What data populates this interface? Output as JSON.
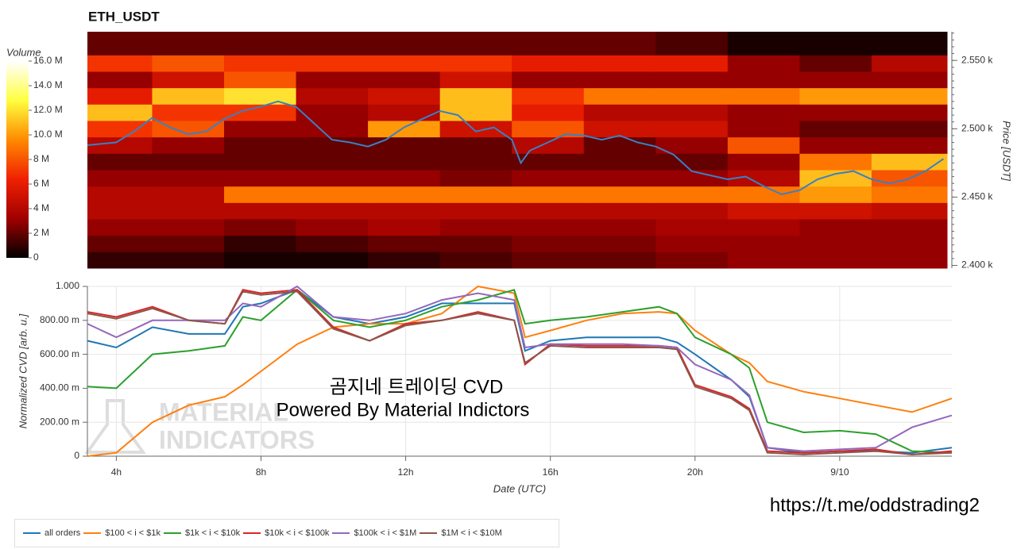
{
  "chart_data": [
    {
      "type": "heatmap",
      "title": "ETH_USDT",
      "ylabel": "Price [USDT]",
      "colorbar_label": "Volume",
      "xlim": [
        3.2,
        27.1
      ],
      "ylim": [
        2398,
        2571
      ],
      "yticks": [
        {
          "value": 2400,
          "label": "2.400 k"
        },
        {
          "value": 2450,
          "label": "2.450 k"
        },
        {
          "value": 2500,
          "label": "2.500 k"
        },
        {
          "value": 2550,
          "label": "2.550 k"
        }
      ],
      "clim": [
        0,
        16
      ],
      "cticks": [
        0,
        {
          "value": 2,
          "label": "2 M"
        },
        {
          "value": 4,
          "label": "4 M"
        },
        {
          "value": 6,
          "label": "6 M"
        },
        {
          "value": 8,
          "label": "8 M"
        },
        {
          "value": 10,
          "label": "10.0 M"
        },
        {
          "value": 12,
          "label": "12.0 M"
        },
        {
          "value": 14,
          "label": "14.0 M"
        },
        {
          "value": 16,
          "label": "16.0 M"
        }
      ],
      "colorscale": [
        "#000000",
        "#a00000",
        "#f02000",
        "#ff8a00",
        "#ffff40",
        "#ffffff"
      ],
      "x_bins": [
        3.2,
        5,
        7,
        9,
        11,
        13,
        15,
        17,
        19,
        21,
        23,
        25,
        27.1
      ],
      "y_bins": [
        2398,
        2410,
        2422,
        2434,
        2446,
        2458,
        2470,
        2482,
        2494,
        2506,
        2518,
        2530,
        2542,
        2554,
        2571
      ],
      "z": [
        [
          1,
          1,
          0.5,
          0.5,
          1,
          1.5,
          2,
          2,
          2.5,
          3,
          3,
          3
        ],
        [
          2,
          2,
          1,
          1.5,
          2,
          2,
          2.5,
          2.5,
          3,
          3,
          3,
          3
        ],
        [
          3,
          3,
          2.5,
          3,
          3.5,
          3,
          3,
          3,
          3.5,
          3.5,
          3,
          3
        ],
        [
          4,
          4,
          4,
          4,
          4,
          4,
          4,
          4,
          4,
          5,
          5,
          4.5
        ],
        [
          4,
          4,
          9,
          9,
          9,
          9,
          9,
          9,
          9,
          9,
          10,
          9
        ],
        [
          3,
          3,
          3,
          3,
          3,
          2.5,
          3,
          3,
          3,
          4,
          11,
          8
        ],
        [
          2,
          2,
          2,
          2,
          2,
          2,
          2,
          2,
          2,
          3,
          9,
          11
        ],
        [
          4,
          3,
          2,
          2,
          2,
          2,
          4,
          2,
          3,
          8,
          3,
          3
        ],
        [
          7,
          8,
          3,
          3,
          10,
          5,
          8,
          5,
          5,
          3,
          2,
          2
        ],
        [
          11,
          7,
          7,
          3,
          4,
          11,
          6,
          4,
          4,
          3,
          3,
          3
        ],
        [
          6,
          11,
          12,
          4,
          5,
          11,
          7,
          9,
          9,
          9,
          10,
          10
        ],
        [
          3,
          5,
          8,
          3,
          3,
          5,
          3,
          3,
          3,
          3,
          3,
          3
        ],
        [
          7,
          8,
          7,
          7,
          7,
          7,
          6,
          6,
          6,
          3,
          2,
          4
        ],
        [
          2,
          2,
          2,
          2,
          2,
          2,
          2,
          2,
          1.5,
          0.5,
          0.5,
          0.5
        ]
      ],
      "overlay": {
        "color": "#3a80c4",
        "x": [
          3.2,
          4,
          4.5,
          5,
          5.5,
          6,
          6.5,
          7,
          7.5,
          8,
          8.5,
          9,
          9.5,
          10,
          10.5,
          11,
          11.5,
          12,
          12.5,
          13,
          13.5,
          14,
          14.5,
          15,
          15.25,
          15.5,
          16,
          16.5,
          17,
          17.5,
          18,
          18.5,
          19,
          19.5,
          20,
          20.5,
          21,
          21.5,
          22,
          22.5,
          23,
          23.5,
          24,
          24.5,
          25,
          25.5,
          26,
          26.5,
          27
        ],
        "values": [
          2488,
          2490,
          2498,
          2508,
          2501,
          2496,
          2498,
          2507,
          2513,
          2516,
          2520,
          2516,
          2504,
          2492,
          2490,
          2487,
          2492,
          2501,
          2507,
          2513,
          2510,
          2498,
          2501,
          2492,
          2475,
          2484,
          2490,
          2496,
          2495,
          2492,
          2495,
          2490,
          2487,
          2481,
          2469,
          2466,
          2463,
          2465,
          2458,
          2452,
          2455,
          2463,
          2467,
          2469,
          2463,
          2460,
          2463,
          2469,
          2478
        ]
      }
    },
    {
      "type": "line",
      "xlabel": "Date (UTC)",
      "ylabel": "Normalized CVD [arb. u.]",
      "xlim": [
        3.2,
        27.1
      ],
      "ylim": [
        0,
        1
      ],
      "xticks": [
        {
          "value": 4,
          "label": "4h"
        },
        {
          "value": 8,
          "label": "8h"
        },
        {
          "value": 12,
          "label": "12h"
        },
        {
          "value": 16,
          "label": "16h"
        },
        {
          "value": 20,
          "label": "20h"
        },
        {
          "value": 24,
          "label": "9/10"
        }
      ],
      "yticks": [
        0,
        {
          "value": 0.2,
          "label": "200.00 m"
        },
        {
          "value": 0.4,
          "label": "400.00 m"
        },
        {
          "value": 0.6,
          "label": "600.00 m"
        },
        {
          "value": 0.8,
          "label": "800.00 m"
        },
        {
          "value": 1,
          "label": "1.000"
        }
      ],
      "grid": true,
      "x": [
        3.2,
        4,
        5,
        6,
        7,
        7.5,
        8,
        9,
        10,
        11,
        12,
        13,
        14,
        15,
        15.3,
        16,
        17,
        18,
        19,
        19.5,
        20,
        21,
        21.5,
        22,
        23,
        24,
        25,
        26,
        27.1
      ],
      "series": [
        {
          "name": "all orders",
          "color": "#1f77b4",
          "values": [
            0.68,
            0.64,
            0.76,
            0.72,
            0.72,
            0.88,
            0.9,
            0.98,
            0.82,
            0.78,
            0.82,
            0.9,
            0.9,
            0.9,
            0.62,
            0.68,
            0.7,
            0.7,
            0.7,
            0.67,
            0.6,
            0.45,
            0.35,
            0.05,
            0.02,
            0.03,
            0.03,
            0.02,
            0.05
          ]
        },
        {
          "name": "$100 < i < $1k",
          "color": "#ff7f0e",
          "values": [
            0,
            0.02,
            0.2,
            0.3,
            0.35,
            0.42,
            0.5,
            0.66,
            0.76,
            0.78,
            0.78,
            0.84,
            1,
            0.96,
            0.7,
            0.74,
            0.8,
            0.84,
            0.85,
            0.84,
            0.74,
            0.6,
            0.55,
            0.44,
            0.38,
            0.34,
            0.3,
            0.26,
            0.34
          ]
        },
        {
          "name": "$1k < i < $10k",
          "color": "#2ca02c",
          "values": [
            0.41,
            0.4,
            0.6,
            0.62,
            0.65,
            0.82,
            0.8,
            0.98,
            0.8,
            0.76,
            0.8,
            0.88,
            0.92,
            0.98,
            0.78,
            0.8,
            0.82,
            0.85,
            0.88,
            0.84,
            0.7,
            0.6,
            0.52,
            0.2,
            0.14,
            0.15,
            0.13,
            0.03,
            0.02
          ]
        },
        {
          "name": "$10k < i < $100k",
          "color": "#d62728",
          "values": [
            0.85,
            0.82,
            0.88,
            0.8,
            0.78,
            0.98,
            0.96,
            0.98,
            0.76,
            0.68,
            0.78,
            0.8,
            0.85,
            0.8,
            0.54,
            0.66,
            0.65,
            0.65,
            0.65,
            0.64,
            0.42,
            0.35,
            0.28,
            0.03,
            0.02,
            0.03,
            0.04,
            0.01,
            0.03
          ]
        },
        {
          "name": "$100k < i < $1M",
          "color": "#9467bd",
          "values": [
            0.78,
            0.7,
            0.8,
            0.8,
            0.8,
            0.9,
            0.88,
            1,
            0.82,
            0.8,
            0.84,
            0.92,
            0.96,
            0.92,
            0.64,
            0.66,
            0.66,
            0.66,
            0.65,
            0.64,
            0.54,
            0.45,
            0.36,
            0.05,
            0.03,
            0.04,
            0.05,
            0.17,
            0.24
          ]
        },
        {
          "name": "$1M < i < $10M",
          "color": "#8c564b",
          "values": [
            0.84,
            0.81,
            0.87,
            0.8,
            0.78,
            0.97,
            0.95,
            0.97,
            0.75,
            0.68,
            0.77,
            0.8,
            0.84,
            0.8,
            0.55,
            0.65,
            0.64,
            0.64,
            0.64,
            0.63,
            0.41,
            0.34,
            0.27,
            0.02,
            0.01,
            0.02,
            0.03,
            0.01,
            0.02
          ]
        }
      ]
    }
  ],
  "annotations": {
    "overlay_title": "곰지네 트레이딩 CVD",
    "overlay_subtitle": "Powered By Material Indictors",
    "link": "https://t.me/oddstrading2",
    "watermark": [
      "MATERIAL",
      "INDICATORS"
    ]
  }
}
